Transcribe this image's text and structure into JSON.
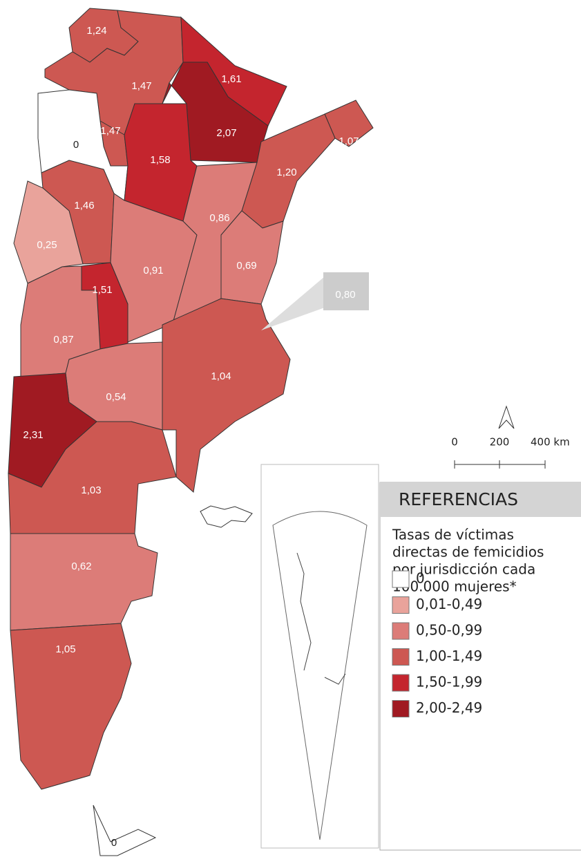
{
  "regions": [
    {
      "label": "1,24",
      "color": "#cd5852"
    },
    {
      "label": "1,47",
      "color": "#cd5852"
    },
    {
      "label": "1,61",
      "color": "#c4252e"
    },
    {
      "label": "2,07",
      "color": "#a01a22"
    },
    {
      "label": "1,07",
      "color": "#cd5852"
    },
    {
      "label": "1,20",
      "color": "#cd5852"
    },
    {
      "label": "1,47",
      "color": "#cd5852"
    },
    {
      "label": "0",
      "color": "#ffffff"
    },
    {
      "label": "1,58",
      "color": "#c4252e"
    },
    {
      "label": "1,46",
      "color": "#cd5852"
    },
    {
      "label": "0,25",
      "color": "#e9a39b"
    },
    {
      "label": "0,91",
      "color": "#dc7c78"
    },
    {
      "label": "0,86",
      "color": "#dc7c78"
    },
    {
      "label": "0,69",
      "color": "#dc7c78"
    },
    {
      "label": "1,51",
      "color": "#c4252e"
    },
    {
      "label": "0,87",
      "color": "#dc7c78"
    },
    {
      "label": "0,80",
      "color": "#dc7c78"
    },
    {
      "label": "1,04",
      "color": "#cd5852"
    },
    {
      "label": "0,54",
      "color": "#dc7c78"
    },
    {
      "label": "2,31",
      "color": "#a01a22"
    },
    {
      "label": "1,03",
      "color": "#cd5852"
    },
    {
      "label": "0,62",
      "color": "#dc7c78"
    },
    {
      "label": "1,05",
      "color": "#cd5852"
    },
    {
      "label": "0",
      "color": "#ffffff"
    }
  ],
  "scale": {
    "labels": [
      "0",
      "200",
      "400 km"
    ]
  },
  "legend": {
    "title": "REFERENCIAS",
    "description": [
      "Tasas de víctimas",
      "directas de femicidios",
      "por jurisdicción cada",
      "100.000 mujeres*"
    ],
    "items": [
      {
        "label": "0",
        "color": "#ffffff"
      },
      {
        "label": "0,01-0,49",
        "color": "#e9a39b"
      },
      {
        "label": "0,50-0,99",
        "color": "#dc7c78"
      },
      {
        "label": "1,00-1,49",
        "color": "#cd5852"
      },
      {
        "label": "1,50-1,99",
        "color": "#c4252e"
      },
      {
        "label": "2,00-2,49",
        "color": "#a01a22"
      }
    ]
  }
}
